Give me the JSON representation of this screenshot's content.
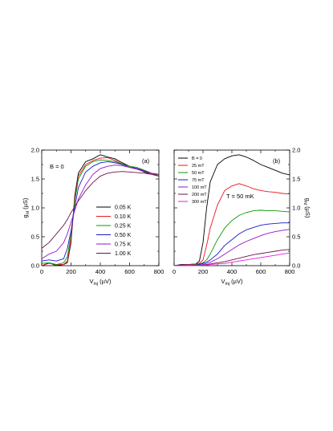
{
  "chart_data": [
    {
      "type": "line",
      "panel_label": "(a)",
      "annotation": "B = 0",
      "xlabel": "V",
      "xlabel_sub": "inj",
      "xlabel_unit": "(µV)",
      "ylabel": "g",
      "ylabel_sub": "nl",
      "ylabel_unit": "(µS)",
      "xlim": [
        0,
        800
      ],
      "ylim": [
        0,
        2.0
      ],
      "xticks": [
        "0",
        "200",
        "400",
        "600",
        "800"
      ],
      "yticks": [
        "0.0",
        "0.5",
        "1.0",
        "1.5",
        "2.0"
      ],
      "grid": false,
      "legend_position": "bottom-right",
      "x": [
        0,
        50,
        100,
        150,
        175,
        200,
        225,
        250,
        300,
        350,
        400,
        450,
        500,
        550,
        600,
        650,
        700,
        750,
        800
      ],
      "series": [
        {
          "name": "0.05 K",
          "color": "#000000",
          "values": [
            0.0,
            0.05,
            0.0,
            0.02,
            0.05,
            0.4,
            1.2,
            1.6,
            1.8,
            1.85,
            1.92,
            1.88,
            1.85,
            1.78,
            1.72,
            1.68,
            1.62,
            1.58,
            1.55
          ]
        },
        {
          "name": "0.10 K",
          "color": "#e8141e",
          "values": [
            0.0,
            0.04,
            0.02,
            0.02,
            0.08,
            0.45,
            1.15,
            1.55,
            1.75,
            1.82,
            1.86,
            1.87,
            1.82,
            1.76,
            1.72,
            1.68,
            1.65,
            1.6,
            1.55
          ]
        },
        {
          "name": "0.25 K",
          "color": "#0a9a0a",
          "values": [
            0.04,
            0.05,
            0.02,
            0.05,
            0.15,
            0.55,
            1.1,
            1.5,
            1.72,
            1.8,
            1.83,
            1.82,
            1.8,
            1.76,
            1.72,
            1.7,
            1.65,
            1.6,
            1.57
          ]
        },
        {
          "name": "0.50 K",
          "color": "#1a1acc",
          "values": [
            0.08,
            0.1,
            0.08,
            0.12,
            0.3,
            0.6,
            1.0,
            1.35,
            1.62,
            1.72,
            1.78,
            1.8,
            1.78,
            1.75,
            1.7,
            1.68,
            1.64,
            1.6,
            1.58
          ]
        },
        {
          "name": "0.75 K",
          "color": "#9a14c8",
          "values": [
            0.12,
            0.2,
            0.25,
            0.4,
            0.55,
            0.75,
            0.95,
            1.15,
            1.4,
            1.58,
            1.68,
            1.72,
            1.74,
            1.73,
            1.7,
            1.67,
            1.63,
            1.6,
            1.58
          ]
        },
        {
          "name": "1.00 K",
          "color": "#6e1450",
          "values": [
            0.3,
            0.4,
            0.55,
            0.7,
            0.8,
            0.92,
            1.02,
            1.12,
            1.3,
            1.44,
            1.55,
            1.6,
            1.62,
            1.63,
            1.62,
            1.61,
            1.6,
            1.58,
            1.55
          ]
        }
      ]
    },
    {
      "type": "line",
      "panel_label": "(b)",
      "annotation": "T = 50 mK",
      "xlabel": "V",
      "xlabel_sub": "inj",
      "xlabel_unit": "(µV)",
      "ylabel": "g",
      "ylabel_sub": "nl",
      "ylabel_unit": "(µS)",
      "xlim": [
        0,
        800
      ],
      "ylim": [
        0,
        2.0
      ],
      "xticks": [
        "0",
        "200",
        "400",
        "600",
        "800"
      ],
      "yticks": [
        "0.0",
        "0.5",
        "1.0",
        "1.5",
        "2.0"
      ],
      "grid": false,
      "legend_position": "top-left",
      "x": [
        0,
        50,
        100,
        150,
        175,
        200,
        225,
        250,
        300,
        350,
        400,
        450,
        500,
        550,
        600,
        650,
        700,
        750,
        800
      ],
      "series": [
        {
          "name": "B = 0",
          "color": "#000000",
          "values": [
            0.0,
            0.02,
            0.02,
            0.03,
            0.08,
            0.4,
            1.0,
            1.45,
            1.75,
            1.85,
            1.9,
            1.92,
            1.88,
            1.82,
            1.75,
            1.7,
            1.65,
            1.6,
            1.57
          ]
        },
        {
          "name": "25 mT",
          "color": "#e8141e",
          "values": [
            0.0,
            0.01,
            0.02,
            0.03,
            0.04,
            0.1,
            0.35,
            0.65,
            1.05,
            1.3,
            1.38,
            1.42,
            1.38,
            1.33,
            1.3,
            1.28,
            1.27,
            1.25,
            1.24
          ]
        },
        {
          "name": "50 mT",
          "color": "#0a9a0a",
          "values": [
            0.0,
            0.01,
            0.01,
            0.02,
            0.03,
            0.05,
            0.1,
            0.2,
            0.45,
            0.65,
            0.78,
            0.87,
            0.92,
            0.95,
            0.96,
            0.95,
            0.95,
            0.94,
            0.93
          ]
        },
        {
          "name": "75 mT",
          "color": "#1a1acc",
          "values": [
            0.0,
            0.01,
            0.01,
            0.01,
            0.02,
            0.04,
            0.06,
            0.1,
            0.2,
            0.35,
            0.45,
            0.55,
            0.62,
            0.66,
            0.7,
            0.72,
            0.73,
            0.74,
            0.74
          ]
        },
        {
          "name": "100 mT",
          "color": "#9a14c8",
          "values": [
            0.0,
            0.0,
            0.01,
            0.01,
            0.01,
            0.02,
            0.04,
            0.06,
            0.12,
            0.2,
            0.28,
            0.36,
            0.42,
            0.47,
            0.52,
            0.56,
            0.59,
            0.61,
            0.63
          ]
        },
        {
          "name": "200 mT",
          "color": "#6e1450",
          "values": [
            0.0,
            0.0,
            0.0,
            0.01,
            0.01,
            0.01,
            0.02,
            0.03,
            0.05,
            0.07,
            0.1,
            0.13,
            0.16,
            0.19,
            0.21,
            0.23,
            0.25,
            0.27,
            0.28
          ]
        },
        {
          "name": "300 mT",
          "color": "#e020e0",
          "values": [
            0.0,
            0.0,
            0.0,
            0.0,
            0.0,
            0.01,
            0.01,
            0.02,
            0.03,
            0.04,
            0.06,
            0.08,
            0.1,
            0.12,
            0.14,
            0.16,
            0.18,
            0.2,
            0.22
          ]
        }
      ]
    }
  ]
}
